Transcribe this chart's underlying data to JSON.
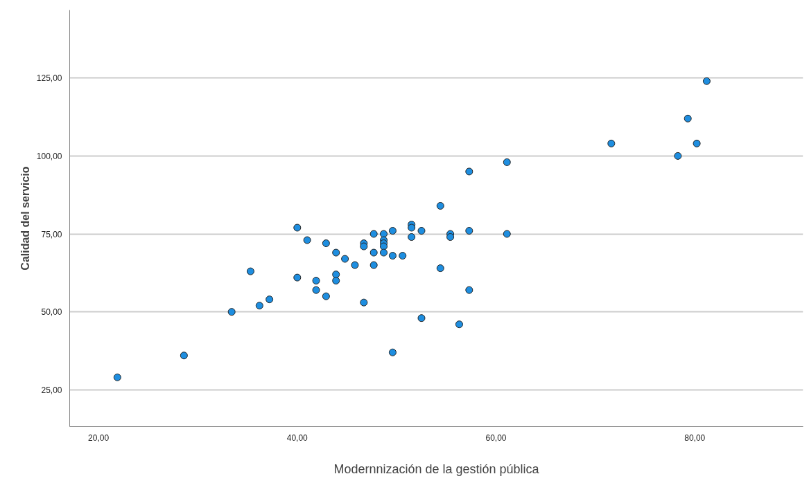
{
  "chart_data": {
    "type": "scatter",
    "xlabel": "Modernnización de la gestión pública",
    "ylabel": "Calidad del servicio",
    "marker": "circle",
    "grid": "y",
    "xlim": [
      17.1,
      90.9
    ],
    "ylim": [
      13.2,
      146.8
    ],
    "xticks": [
      {
        "value": 20,
        "label": "20,00"
      },
      {
        "value": 40,
        "label": "40,00"
      },
      {
        "value": 60,
        "label": "60,00"
      },
      {
        "value": 80,
        "label": "80,00"
      }
    ],
    "yticks": [
      {
        "value": 25,
        "label": "25,00"
      },
      {
        "value": 50,
        "label": "50,00"
      },
      {
        "value": 75,
        "label": "75,00"
      },
      {
        "value": 100,
        "label": "100,00"
      },
      {
        "value": 125,
        "label": "125,00"
      }
    ],
    "series": [
      {
        "color": "#1e8ee0",
        "x": [
          21.9,
          28.6,
          33.4,
          35.3,
          36.2,
          37.2,
          40.0,
          40.0,
          41.0,
          41.9,
          41.9,
          42.9,
          42.9,
          43.9,
          43.9,
          43.9,
          44.8,
          45.8,
          46.7,
          46.7,
          46.7,
          47.7,
          47.7,
          47.7,
          48.7,
          48.7,
          48.7,
          48.7,
          48.7,
          49.6,
          49.6,
          49.6,
          50.6,
          51.5,
          51.5,
          51.5,
          52.5,
          52.5,
          54.4,
          54.4,
          55.4,
          55.4,
          56.3,
          57.3,
          57.3,
          57.3,
          61.1,
          61.1,
          71.6,
          78.3,
          79.3,
          80.2,
          81.2
        ],
        "values": [
          29,
          36,
          50,
          63,
          52,
          54,
          77,
          61,
          73,
          60,
          57,
          72,
          55,
          69,
          62,
          60,
          67,
          65,
          72,
          71,
          53,
          75,
          69,
          65,
          75,
          73,
          72,
          71,
          69,
          76,
          68,
          37,
          68,
          78,
          77,
          74,
          76,
          48,
          84,
          64,
          75,
          74,
          46,
          95,
          76,
          57,
          98,
          75,
          104,
          100,
          112,
          104,
          124
        ]
      }
    ]
  }
}
